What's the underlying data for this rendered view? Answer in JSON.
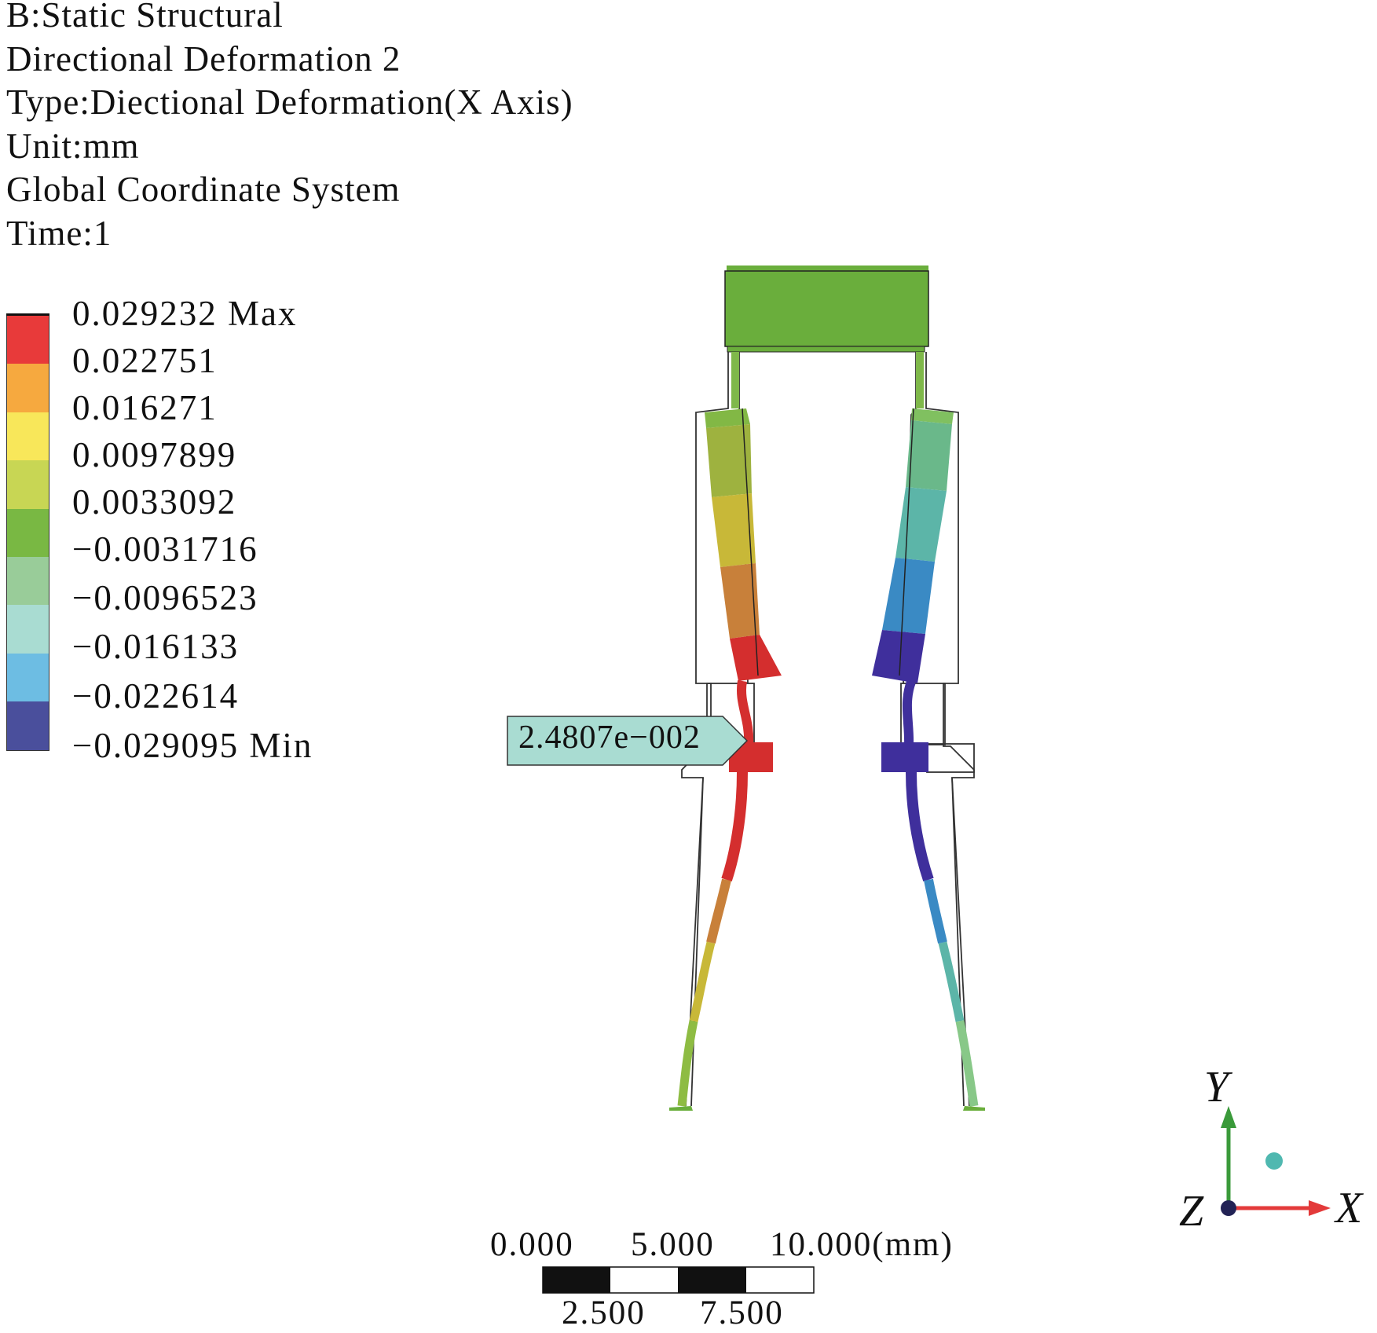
{
  "header": {
    "lines": [
      "B:Static Structural",
      "Directional Deformation 2",
      "Type:Diectional Deformation(X Axis)",
      "Unit:mm",
      "Global Coordinate System",
      "Time:1"
    ]
  },
  "legend": {
    "colors": [
      "#e83a3a",
      "#f6a93f",
      "#f8e75a",
      "#c8d654",
      "#79b843",
      "#99cc99",
      "#a9dcd2",
      "#6dbde3",
      "#4a4f9c"
    ],
    "labels": [
      "0.029232 Max",
      "0.022751",
      "0.016271",
      "0.0097899",
      "0.0033092",
      "−0.0031716",
      "−0.0096523",
      "−0.016133",
      "−0.022614",
      "−0.029095 Min"
    ]
  },
  "probe": {
    "value": "2.4807e−002"
  },
  "scale_bar": {
    "top_labels": [
      "0.000",
      "5.000",
      "10.000(mm)"
    ],
    "bottom_labels": [
      "2.500",
      "7.500"
    ]
  },
  "triad": {
    "x_label": "X",
    "y_label": "Y",
    "z_label": "Z",
    "x_color": "#e33a3a",
    "y_color": "#3a9a3a",
    "z_color": "#222255"
  }
}
